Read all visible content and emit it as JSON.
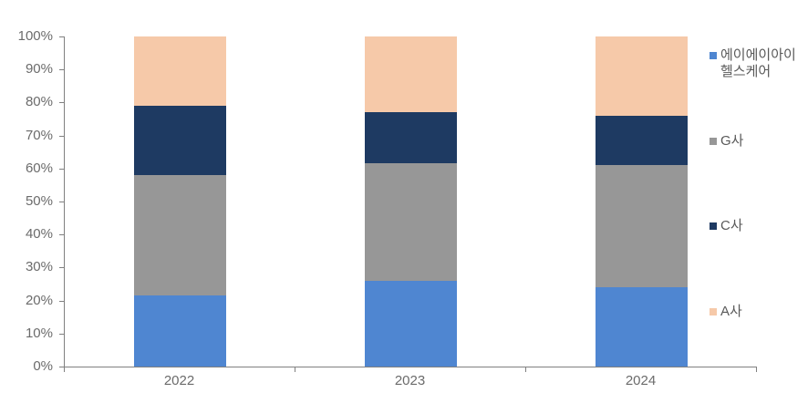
{
  "chart_data": {
    "type": "bar",
    "stacked": true,
    "percent_stacked": true,
    "title": "",
    "xlabel": "",
    "ylabel": "",
    "unit": "%",
    "categories": [
      "2022",
      "2023",
      "2024"
    ],
    "series": [
      {
        "name": "에이에이아이헬스케어",
        "color": "#4F86D1",
        "values": [
          21.5,
          26,
          24
        ]
      },
      {
        "name": "G사",
        "color": "#979797",
        "values": [
          36.5,
          35.5,
          37
        ]
      },
      {
        "name": "C사",
        "color": "#1E3A62",
        "values": [
          21,
          15.5,
          15
        ]
      },
      {
        "name": "A사",
        "color": "#F6C9A9",
        "values": [
          21,
          23,
          24
        ]
      }
    ],
    "ylim": [
      0,
      100
    ],
    "y_tick_labels": [
      "0%",
      "10%",
      "20%",
      "30%",
      "40%",
      "50%",
      "60%",
      "70%",
      "80%",
      "90%",
      "100%"
    ],
    "grid": false,
    "legend_position": "right",
    "axis_color": "#808080",
    "axis_text_color": "#6b6b6b",
    "legend_text_color": "#595959",
    "background_color": "#ffffff"
  }
}
